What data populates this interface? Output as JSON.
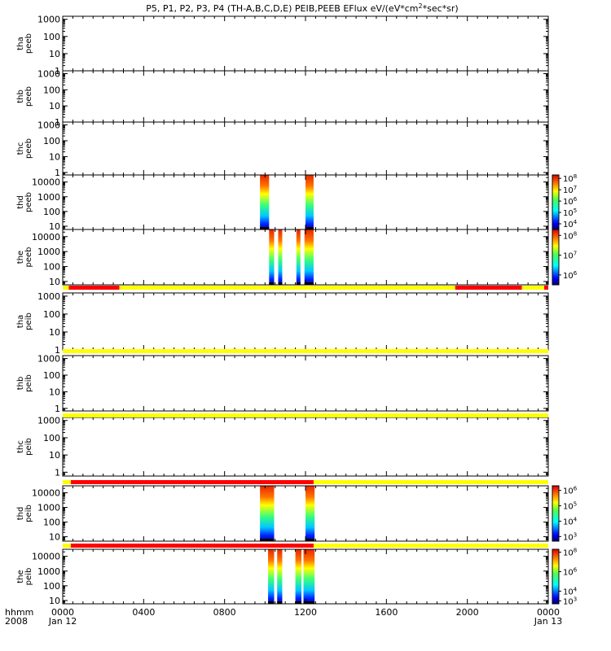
{
  "title": "P5, P1, P2, P3, P4 (TH-A,B,C,D,E) PEIB,PEEB EFlux eV/(eV*cm²*sec*sr)",
  "colors": {
    "bar_yellow": "#ffff00",
    "bar_red": "#ff0000"
  },
  "chart_data": {
    "type": "heatmap",
    "x_axis": {
      "label_line1": "hhmm",
      "label_line2": "2008",
      "range_hours": [
        0,
        24
      ],
      "ticks": [
        {
          "hour": 0,
          "label": "0000",
          "sub": "Jan 12"
        },
        {
          "hour": 4,
          "label": "0400",
          "sub": ""
        },
        {
          "hour": 8,
          "label": "0800",
          "sub": ""
        },
        {
          "hour": 12,
          "label": "1200",
          "sub": ""
        },
        {
          "hour": 16,
          "label": "1600",
          "sub": ""
        },
        {
          "hour": 20,
          "label": "2000",
          "sub": ""
        },
        {
          "hour": 24,
          "label": "0000",
          "sub": "Jan 13"
        }
      ]
    },
    "panels": [
      {
        "name": "tha peeb",
        "ylabel": [
          "tha",
          "peeb"
        ],
        "yticks": [
          {
            "v": 1,
            "t": "1"
          },
          {
            "v": 10,
            "t": "10"
          },
          {
            "v": 100,
            "t": "100"
          },
          {
            "v": 1000,
            "t": "1000"
          }
        ],
        "ylog": [
          1,
          1500
        ],
        "blocks": [],
        "colorbar": null
      },
      {
        "name": "thb peeb",
        "ylabel": [
          "thb",
          "peeb"
        ],
        "yticks": [
          {
            "v": 1,
            "t": "1"
          },
          {
            "v": 10,
            "t": "10"
          },
          {
            "v": 100,
            "t": "100"
          },
          {
            "v": 1000,
            "t": "1000"
          }
        ],
        "ylog": [
          1,
          1500
        ],
        "blocks": [],
        "colorbar": null
      },
      {
        "name": "thc peeb",
        "ylabel": [
          "thc",
          "peeb"
        ],
        "yticks": [
          {
            "v": 1,
            "t": "1"
          },
          {
            "v": 10,
            "t": "10"
          },
          {
            "v": 100,
            "t": "100"
          },
          {
            "v": 1000,
            "t": "1000"
          }
        ],
        "ylog": [
          0.7,
          1500
        ],
        "blocks": [],
        "colorbar": null
      },
      {
        "name": "thd peeb",
        "ylabel": [
          "thd",
          "peeb"
        ],
        "yticks": [
          {
            "v": 10,
            "t": "10"
          },
          {
            "v": 100,
            "t": "100"
          },
          {
            "v": 1000,
            "t": "1000"
          },
          {
            "v": 10000,
            "t": "10000"
          }
        ],
        "ylog": [
          6,
          30000
        ],
        "blocks": [
          {
            "start": 9.75,
            "end": 10.2
          },
          {
            "start": 12.0,
            "end": 12.4
          }
        ],
        "colorbar": {
          "ticks": [
            {
              "e": 4
            },
            {
              "e": 5
            },
            {
              "e": 6
            },
            {
              "e": 7
            },
            {
              "e": 8
            }
          ],
          "range": [
            3.5,
            8.3
          ]
        }
      },
      {
        "name": "the peeb",
        "ylabel": [
          "the",
          "peeb"
        ],
        "yticks": [
          {
            "v": 10,
            "t": "10"
          },
          {
            "v": 100,
            "t": "100"
          },
          {
            "v": 1000,
            "t": "1000"
          },
          {
            "v": 10000,
            "t": "10000"
          }
        ],
        "ylog": [
          6,
          30000
        ],
        "blocks": [
          {
            "start": 10.2,
            "end": 10.45
          },
          {
            "start": 10.65,
            "end": 10.85
          },
          {
            "start": 11.55,
            "end": 11.75
          },
          {
            "start": 11.95,
            "end": 12.4
          }
        ],
        "colorbar": {
          "ticks": [
            {
              "e": 6
            },
            {
              "e": 7
            },
            {
              "e": 8
            }
          ],
          "range": [
            5.5,
            8.3
          ]
        }
      },
      {
        "name": "tha peib",
        "ylabel": [
          "tha",
          "peib"
        ],
        "yticks": [
          {
            "v": 1,
            "t": "1"
          },
          {
            "v": 10,
            "t": "10"
          },
          {
            "v": 100,
            "t": "100"
          },
          {
            "v": 1000,
            "t": "1000"
          }
        ],
        "ylog": [
          1,
          1500
        ],
        "blocks": [],
        "colorbar": null
      },
      {
        "name": "thb peib",
        "ylabel": [
          "thb",
          "peib"
        ],
        "yticks": [
          {
            "v": 1,
            "t": "1"
          },
          {
            "v": 10,
            "t": "10"
          },
          {
            "v": 100,
            "t": "100"
          },
          {
            "v": 1000,
            "t": "1000"
          }
        ],
        "ylog": [
          0.7,
          1500
        ],
        "blocks": [],
        "colorbar": null
      },
      {
        "name": "thc peib",
        "ylabel": [
          "thc",
          "peib"
        ],
        "yticks": [
          {
            "v": 1,
            "t": "1"
          },
          {
            "v": 10,
            "t": "10"
          },
          {
            "v": 100,
            "t": "100"
          },
          {
            "v": 1000,
            "t": "1000"
          }
        ],
        "ylog": [
          0.6,
          1500
        ],
        "blocks": [],
        "colorbar": null
      },
      {
        "name": "thd peib",
        "ylabel": [
          "thd",
          "peib"
        ],
        "yticks": [
          {
            "v": 10,
            "t": "10"
          },
          {
            "v": 100,
            "t": "100"
          },
          {
            "v": 1000,
            "t": "1000"
          },
          {
            "v": 10000,
            "t": "10000"
          }
        ],
        "ylog": [
          5,
          30000
        ],
        "blocks": [
          {
            "start": 9.75,
            "end": 10.45
          },
          {
            "start": 12.0,
            "end": 12.45
          }
        ],
        "colorbar": {
          "ticks": [
            {
              "e": 3
            },
            {
              "e": 4
            },
            {
              "e": 5
            },
            {
              "e": 6
            }
          ],
          "range": [
            2.7,
            6.3
          ]
        }
      },
      {
        "name": "the peib",
        "ylabel": [
          "the",
          "peib"
        ],
        "yticks": [
          {
            "v": 10,
            "t": "10"
          },
          {
            "v": 100,
            "t": "100"
          },
          {
            "v": 1000,
            "t": "1000"
          },
          {
            "v": 10000,
            "t": "10000"
          }
        ],
        "ylog": [
          6,
          30000
        ],
        "blocks": [
          {
            "start": 10.15,
            "end": 10.45
          },
          {
            "start": 10.6,
            "end": 10.85
          },
          {
            "start": 11.5,
            "end": 11.8
          },
          {
            "start": 11.9,
            "end": 12.45
          }
        ],
        "colorbar": {
          "ticks": [
            {
              "e": 3
            },
            {
              "e": 4
            },
            {
              "e": 6
            },
            {
              "e": 8
            }
          ],
          "range": [
            2.7,
            8.3
          ]
        }
      }
    ],
    "status_bars": [
      {
        "after_panel": 4,
        "segments": [
          {
            "s": 0,
            "e": 0.3,
            "c": "yellow"
          },
          {
            "s": 0.3,
            "e": 2.8,
            "c": "red"
          },
          {
            "s": 2.8,
            "e": 19.4,
            "c": "yellow"
          },
          {
            "s": 19.4,
            "e": 22.7,
            "c": "red"
          },
          {
            "s": 22.7,
            "e": 23.8,
            "c": "yellow"
          },
          {
            "s": 23.8,
            "e": 24,
            "c": "red"
          }
        ]
      },
      {
        "after_panel": 5,
        "segments": [
          {
            "s": 0,
            "e": 24,
            "c": "yellow"
          }
        ]
      },
      {
        "after_panel": 6,
        "segments": [
          {
            "s": 0,
            "e": 24,
            "c": "yellow"
          }
        ]
      },
      {
        "after_panel": 7,
        "segments": [
          {
            "s": 0,
            "e": 0.4,
            "c": "yellow"
          },
          {
            "s": 0.4,
            "e": 12.4,
            "c": "red"
          },
          {
            "s": 12.4,
            "e": 24,
            "c": "yellow"
          }
        ]
      },
      {
        "after_panel": 8,
        "segments": [
          {
            "s": 0,
            "e": 0.4,
            "c": "yellow"
          },
          {
            "s": 0.4,
            "e": 12.4,
            "c": "red"
          },
          {
            "s": 12.4,
            "e": 24,
            "c": "yellow"
          }
        ]
      }
    ]
  }
}
